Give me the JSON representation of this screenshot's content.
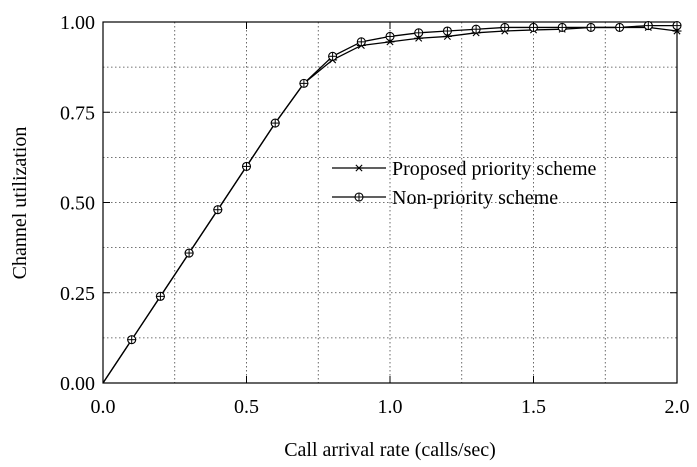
{
  "chart_data": {
    "type": "line",
    "xlabel": "Call arrival rate (calls/sec)",
    "ylabel": "Channel utilization",
    "xlim": [
      0.0,
      2.0
    ],
    "ylim": [
      0.0,
      1.0
    ],
    "xticks": [
      "0.0",
      "0.5",
      "1.0",
      "1.5",
      "2.0"
    ],
    "xtick_values": [
      0.0,
      0.5,
      1.0,
      1.5,
      2.0
    ],
    "yticks": [
      "0.00",
      "0.25",
      "0.50",
      "0.75",
      "1.00"
    ],
    "ytick_values": [
      0.0,
      0.25,
      0.5,
      0.75,
      1.0
    ],
    "grid": true,
    "legend_position": "center-right",
    "series": [
      {
        "name": "Proposed priority scheme",
        "marker": "asterisk",
        "x": [
          0.0,
          0.1,
          0.2,
          0.3,
          0.4,
          0.5,
          0.6,
          0.7,
          0.8,
          0.9,
          1.0,
          1.1,
          1.2,
          1.3,
          1.4,
          1.5,
          1.6,
          1.7,
          1.8,
          1.9,
          2.0
        ],
        "values": [
          0.0,
          0.12,
          0.24,
          0.36,
          0.48,
          0.6,
          0.72,
          0.83,
          0.895,
          0.935,
          0.945,
          0.955,
          0.96,
          0.97,
          0.975,
          0.978,
          0.98,
          0.985,
          0.985,
          0.985,
          0.975
        ]
      },
      {
        "name": "Non-priority scheme",
        "marker": "circle-plus",
        "x": [
          0.0,
          0.1,
          0.2,
          0.3,
          0.4,
          0.5,
          0.6,
          0.7,
          0.8,
          0.9,
          1.0,
          1.1,
          1.2,
          1.3,
          1.4,
          1.5,
          1.6,
          1.7,
          1.8,
          1.9,
          2.0
        ],
        "values": [
          0.0,
          0.12,
          0.24,
          0.36,
          0.48,
          0.6,
          0.72,
          0.83,
          0.905,
          0.945,
          0.96,
          0.97,
          0.975,
          0.98,
          0.985,
          0.985,
          0.985,
          0.985,
          0.985,
          0.99,
          0.99
        ]
      }
    ]
  }
}
